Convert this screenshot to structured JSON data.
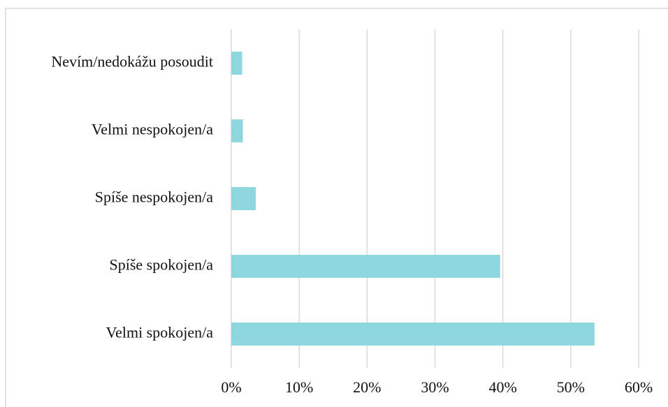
{
  "chart_data": {
    "type": "hbar",
    "categories": [
      "Nevím/nedokážu posoudit",
      "Velmi nespokojen/a",
      "Spíše nespokojen/a",
      "Spíše spokojen/a",
      "Velmi spokojen/a"
    ],
    "values": [
      1.6,
      1.7,
      3.6,
      39.6,
      53.5
    ],
    "color": "#8fd7de",
    "xlim": [
      0,
      60
    ],
    "xticks": [
      {
        "value": 0,
        "label": "0%"
      },
      {
        "value": 10,
        "label": "10%"
      },
      {
        "value": 20,
        "label": "20%"
      },
      {
        "value": 30,
        "label": "30%"
      },
      {
        "value": 40,
        "label": "40%"
      },
      {
        "value": 50,
        "label": "50%"
      },
      {
        "value": 60,
        "label": "60%"
      }
    ],
    "grid": true
  }
}
